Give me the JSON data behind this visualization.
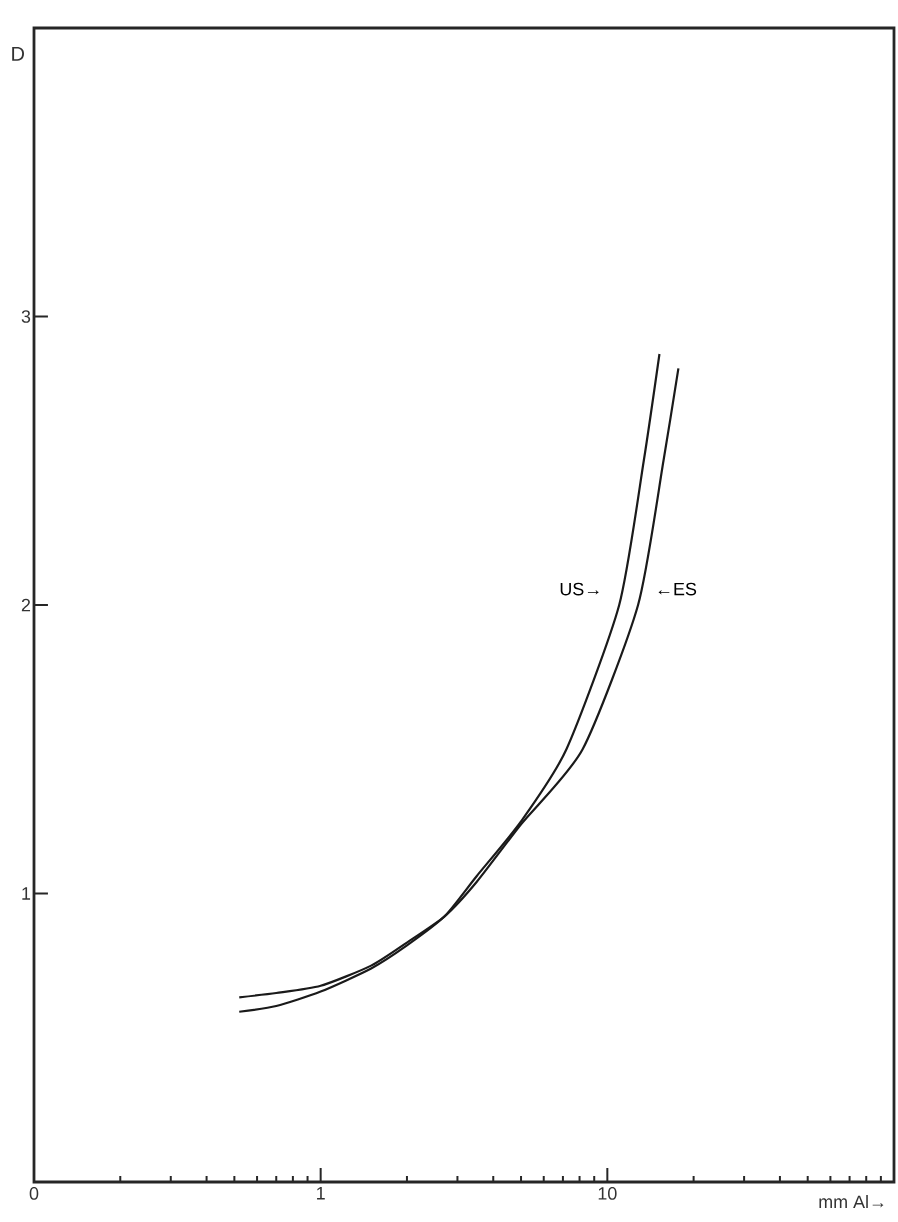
{
  "chart_data": {
    "type": "line",
    "xlabel": "mm Al→",
    "ylabel": "D",
    "log": "x",
    "xlim": [
      0.1,
      100
    ],
    "ylim": [
      0,
      4
    ],
    "xticks": [
      {
        "value": 0.1,
        "label": "0"
      },
      1,
      10
    ],
    "yticks": [
      1,
      2,
      3
    ],
    "grid": false,
    "series": [
      {
        "name": "US→",
        "color": "#1a1a1a",
        "x": [
          0.52,
          0.7,
          1,
          1.5,
          2,
          2.7,
          3.5,
          5,
          7.2,
          11,
          13.4,
          15.2
        ],
        "values": [
          0.59,
          0.61,
          0.66,
          0.74,
          0.82,
          0.92,
          1.06,
          1.25,
          1.5,
          2,
          2.5,
          2.87
        ]
      },
      {
        "name": "←ES",
        "color": "#1a1a1a",
        "x": [
          0.52,
          0.7,
          1,
          1.5,
          2,
          2.7,
          3.5,
          5,
          8.2,
          12.8,
          15.7,
          17.7
        ],
        "values": [
          0.64,
          0.655,
          0.68,
          0.75,
          0.83,
          0.92,
          1.04,
          1.24,
          1.5,
          2,
          2.5,
          2.82
        ]
      }
    ]
  }
}
